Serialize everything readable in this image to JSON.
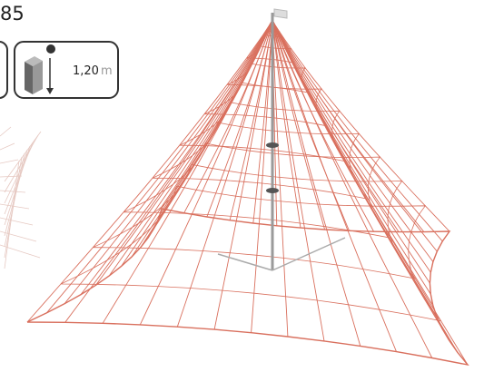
{
  "header": {
    "number": "85"
  },
  "badge": {
    "value": "1,20",
    "unit": "m"
  }
}
